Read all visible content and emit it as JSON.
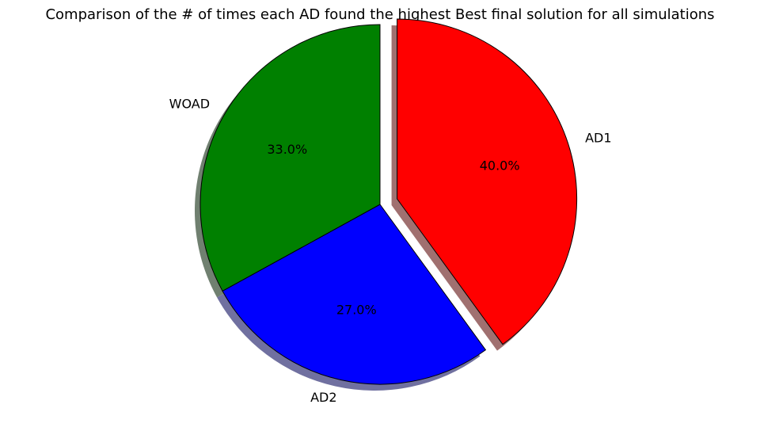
{
  "chart_data": {
    "type": "pie",
    "title": "Comparison of the # of times each AD found the highest Best final solution for all simulations",
    "slices": [
      {
        "label": "AD1",
        "value": 40.0,
        "pct_text": "40.0%",
        "color": "#ff0000",
        "shadow": "#a07070",
        "explode": true
      },
      {
        "label": "AD2",
        "value": 27.0,
        "pct_text": "27.0%",
        "color": "#0000ff",
        "shadow": "#7070a0",
        "explode": false
      },
      {
        "label": "WOAD",
        "value": 33.0,
        "pct_text": "33.0%",
        "color": "#008000",
        "shadow": "#708070",
        "explode": false
      }
    ],
    "start_angle_deg": 90,
    "direction": "clockwise",
    "shadow": true,
    "edge_color": "#000000"
  }
}
